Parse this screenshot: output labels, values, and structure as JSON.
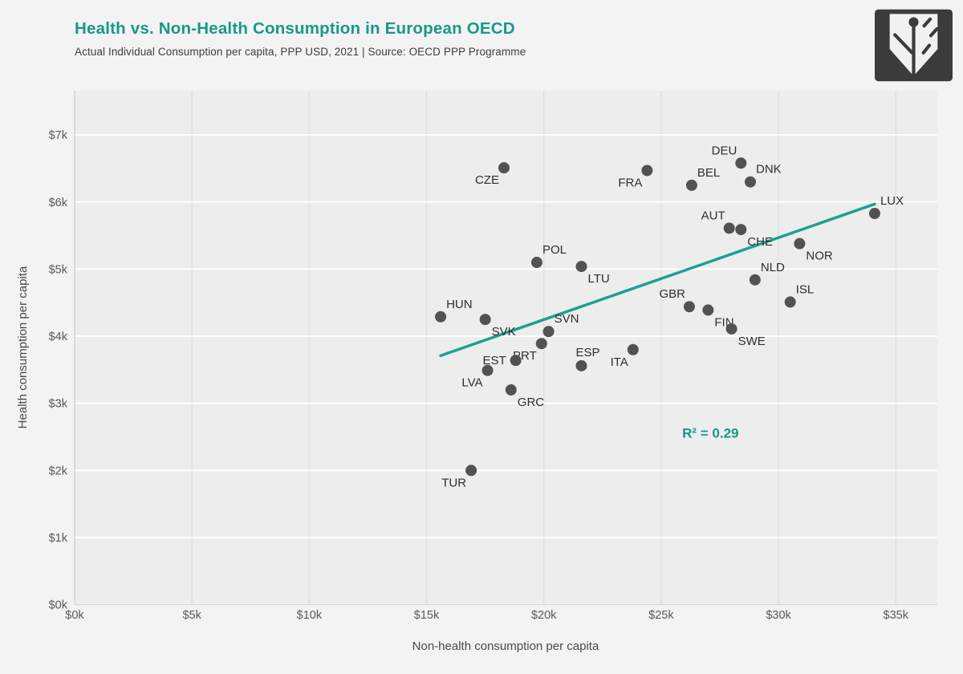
{
  "header": {
    "title": "Health vs. Non-Health Consumption in European OECD",
    "subtitle": "Actual Individual Consumption per capita, PPP USD, 2021 | Source: OECD PPP Programme",
    "title_color": "#17988a"
  },
  "logo": {
    "icon": "leaf-logo-icon",
    "bg_color": "#3b3b3b",
    "fg_color": "#f1f1f1"
  },
  "chart_data": {
    "type": "scatter",
    "title": "Health vs. Non-Health Consumption in European OECD",
    "subtitle": "Actual Individual Consumption per capita, PPP USD, 2021 | Source: OECD PPP Programme",
    "xlabel": "Non-health consumption per capita",
    "ylabel": "Health consumption per capita",
    "units": "PPP USD thousands",
    "xlim_k": [
      0,
      36.77
    ],
    "ylim_k": [
      0,
      7.66
    ],
    "x_tick_values_k": [
      0,
      5,
      10,
      15,
      20,
      25,
      30,
      35
    ],
    "x_ticks": [
      "$0k",
      "$5k",
      "$10k",
      "$15k",
      "$20k",
      "$25k",
      "$30k",
      "$35k"
    ],
    "y_tick_values_k": [
      0,
      1,
      2,
      3,
      4,
      5,
      6,
      7
    ],
    "y_ticks": [
      "$0k",
      "$1k",
      "$2k",
      "$3k",
      "$4k",
      "$5k",
      "$6k",
      "$7k"
    ],
    "grid": {
      "vertical_color": "#dcdcdc",
      "horizontal_color": "#ffffff"
    },
    "panel_bg": "#ededed",
    "point_color": "#525252",
    "point_label_color": "#2e2e2e",
    "axis_text_color": "#595959",
    "axis_title_color": "#4a4a4a",
    "points": [
      {
        "code": "DEU",
        "x_k": 28.4,
        "y_k": 6.58,
        "label_pos": "above-left"
      },
      {
        "code": "CZE",
        "x_k": 18.3,
        "y_k": 6.51,
        "label_pos": "below-left"
      },
      {
        "code": "FRA",
        "x_k": 24.4,
        "y_k": 6.47,
        "label_pos": "below-left"
      },
      {
        "code": "DNK",
        "x_k": 28.8,
        "y_k": 6.3,
        "label_pos": "above-right"
      },
      {
        "code": "BEL",
        "x_k": 26.3,
        "y_k": 6.25,
        "label_pos": "above-right"
      },
      {
        "code": "LUX",
        "x_k": 34.1,
        "y_k": 5.83,
        "label_pos": "above-right"
      },
      {
        "code": "AUT",
        "x_k": 27.9,
        "y_k": 5.61,
        "label_pos": "above-left"
      },
      {
        "code": "CHE",
        "x_k": 28.4,
        "y_k": 5.59,
        "label_pos": "below-right"
      },
      {
        "code": "NOR",
        "x_k": 30.9,
        "y_k": 5.38,
        "label_pos": "below-right"
      },
      {
        "code": "POL",
        "x_k": 19.7,
        "y_k": 5.1,
        "label_pos": "above-right"
      },
      {
        "code": "LTU",
        "x_k": 21.6,
        "y_k": 5.04,
        "label_pos": "below-right"
      },
      {
        "code": "NLD",
        "x_k": 29.0,
        "y_k": 4.84,
        "label_pos": "above-right"
      },
      {
        "code": "ISL",
        "x_k": 30.5,
        "y_k": 4.51,
        "label_pos": "above-right"
      },
      {
        "code": "GBR",
        "x_k": 26.2,
        "y_k": 4.44,
        "label_pos": "above-left"
      },
      {
        "code": "FIN",
        "x_k": 27.0,
        "y_k": 4.39,
        "label_pos": "below-right"
      },
      {
        "code": "HUN",
        "x_k": 15.6,
        "y_k": 4.29,
        "label_pos": "above-right"
      },
      {
        "code": "SVK",
        "x_k": 17.5,
        "y_k": 4.25,
        "label_pos": "below-right"
      },
      {
        "code": "SWE",
        "x_k": 28.0,
        "y_k": 4.11,
        "label_pos": "below-right"
      },
      {
        "code": "SVN",
        "x_k": 20.2,
        "y_k": 4.07,
        "label_pos": "above-right"
      },
      {
        "code": "PRT",
        "x_k": 19.9,
        "y_k": 3.89,
        "label_pos": "below-left"
      },
      {
        "code": "ITA",
        "x_k": 23.8,
        "y_k": 3.8,
        "label_pos": "below-left"
      },
      {
        "code": "EST",
        "x_k": 18.8,
        "y_k": 3.64,
        "label_pos": "left"
      },
      {
        "code": "ESP",
        "x_k": 21.6,
        "y_k": 3.56,
        "label_pos": "above"
      },
      {
        "code": "LVA",
        "x_k": 17.6,
        "y_k": 3.49,
        "label_pos": "below-left"
      },
      {
        "code": "GRC",
        "x_k": 18.6,
        "y_k": 3.2,
        "label_pos": "below-right"
      },
      {
        "code": "TUR",
        "x_k": 16.9,
        "y_k": 2.0,
        "label_pos": "below-left"
      }
    ],
    "trendline": {
      "x1_k": 15.6,
      "y1_k": 3.71,
      "x2_k": 34.1,
      "y2_k": 5.97,
      "color": "#1ba192",
      "width": 3.5
    },
    "annotation": {
      "text": "R² = 0.29",
      "x_k": 27.1,
      "y_k": 2.49,
      "color": "#17988a"
    },
    "legend": "none"
  }
}
